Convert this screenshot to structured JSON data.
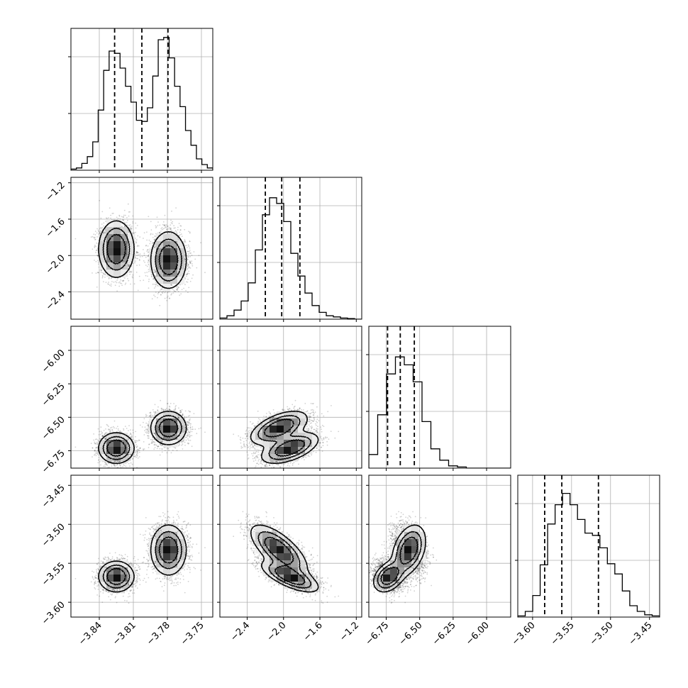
{
  "chart_data": {
    "type": "corner",
    "grid": true,
    "params": [
      {
        "range": [
          -3.865,
          -3.74
        ],
        "ticks": [
          -3.84,
          -3.81,
          -3.78,
          -3.75
        ],
        "tick_labels": [
          "−3.84",
          "−3.81",
          "−3.78",
          "−3.75"
        ],
        "quantiles": [
          -3.8265,
          -3.8025,
          -3.7795
        ],
        "hist_ticks": [
          0.5,
          1.0
        ],
        "hist": [
          0.01,
          0.02,
          0.06,
          0.12,
          0.25,
          0.53,
          0.88,
          1.05,
          1.03,
          0.9,
          0.74,
          0.6,
          0.44,
          0.43,
          0.55,
          0.83,
          1.15,
          1.17,
          0.99,
          0.74,
          0.56,
          0.35,
          0.22,
          0.1,
          0.05,
          0.02
        ]
      },
      {
        "range": [
          -2.7,
          -1.14
        ],
        "ticks": [
          -2.4,
          -2.0,
          -1.6,
          -1.2
        ],
        "tick_labels": [
          "−2.4",
          "−2.0",
          "−1.6",
          "−1.2"
        ],
        "quantiles": [
          -2.2,
          -2.02,
          -1.82
        ],
        "hist_ticks": [
          0.5,
          1.0
        ],
        "hist": [
          0.01,
          0.03,
          0.08,
          0.16,
          0.32,
          0.61,
          0.92,
          1.07,
          1.02,
          0.86,
          0.58,
          0.38,
          0.23,
          0.12,
          0.06,
          0.03,
          0.02,
          0.01,
          0.005,
          0.0
        ]
      },
      {
        "range": [
          -6.88,
          -5.82
        ],
        "ticks": [
          -6.75,
          -6.5,
          -6.25,
          -6.0
        ],
        "tick_labels": [
          "−6.75",
          "−6.50",
          "−6.25",
          "−6.00"
        ],
        "quantiles": [
          -6.74,
          -6.645,
          -6.54
        ],
        "hist_ticks": [
          0.5,
          1.0
        ],
        "hist": [
          0.12,
          0.47,
          0.83,
          0.98,
          0.91,
          0.76,
          0.41,
          0.17,
          0.07,
          0.02,
          0.01,
          0.0,
          0.0,
          0.0,
          0.0,
          0.0
        ]
      },
      {
        "range": [
          -3.619,
          -3.437
        ],
        "ticks": [
          -3.6,
          -3.55,
          -3.5,
          -3.45
        ],
        "tick_labels": [
          "−3.60",
          "−3.55",
          "−3.50",
          "−3.45"
        ],
        "quantiles": [
          -3.5845,
          -3.5625,
          -3.5155
        ],
        "hist_ticks": [
          0.5,
          1.0
        ],
        "hist": [
          0.01,
          0.05,
          0.19,
          0.46,
          0.82,
          0.99,
          1.09,
          0.99,
          0.86,
          0.74,
          0.72,
          0.61,
          0.47,
          0.38,
          0.23,
          0.1,
          0.05,
          0.02,
          0.01
        ]
      }
    ],
    "y_tick_labels": [
      null,
      {
        "ticks": [
          -2.4,
          -2.0,
          -1.6,
          -1.2
        ],
        "labels": [
          "−2.4",
          "−2.0",
          "−1.6",
          "−1.2"
        ]
      },
      {
        "ticks": [
          -6.75,
          -6.5,
          -6.25,
          -6.0
        ],
        "labels": [
          "−6.75",
          "−6.50",
          "−6.25",
          "−6.00"
        ]
      },
      {
        "ticks": [
          -3.6,
          -3.55,
          -3.5,
          -3.45
        ],
        "labels": [
          "−3.60",
          "−3.55",
          "−3.50",
          "−3.45"
        ]
      }
    ],
    "density": {
      "modes": [
        {
          "p": [
            -3.825,
            -1.93,
            -6.73,
            -3.567
          ],
          "sd": [
            0.0075,
            0.15,
            0.055,
            0.0095
          ],
          "w": 0.5
        },
        {
          "p": [
            -3.779,
            -2.05,
            -6.58,
            -3.533
          ],
          "sd": [
            0.0075,
            0.15,
            0.06,
            0.0155
          ],
          "w": 0.5
        }
      ],
      "correlations": {
        "1-2": 0.55,
        "1-3": -0.7,
        "2-3": 0.35
      }
    }
  }
}
